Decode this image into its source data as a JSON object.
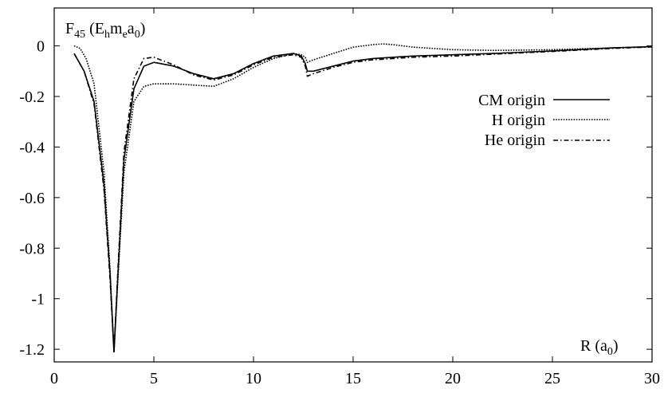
{
  "chart_data": {
    "type": "line",
    "ylabel": {
      "main": "F",
      "sub1": "45",
      "p1": " (E",
      "sub2": "h",
      "p2": "m",
      "sub3": "e",
      "p3": "a",
      "sub4": "0",
      "p4": ")"
    },
    "xlabel": {
      "main": "R (a",
      "sub": "0",
      "close": ")"
    },
    "xlim": [
      0,
      30
    ],
    "ylim": [
      -1.25,
      0.15
    ],
    "xticks": [
      0,
      5,
      10,
      15,
      20,
      25,
      30
    ],
    "xtick_labels": [
      "0",
      "5",
      "10",
      "15",
      "20",
      "25",
      "30"
    ],
    "yticks": [
      0,
      -0.2,
      -0.4,
      -0.6,
      -0.8,
      -1,
      -1.2
    ],
    "ytick_labels": [
      "0",
      "-0.2",
      "-0.4",
      "-0.6",
      "-0.8",
      "-1",
      "-1.2"
    ],
    "legend_position": "upper-right",
    "series": [
      {
        "name": "CM origin",
        "style": "solid",
        "x": [
          1.0,
          1.5,
          2.0,
          2.5,
          2.8,
          3.0,
          3.2,
          3.5,
          4.0,
          4.5,
          5.0,
          6.0,
          7.0,
          8.0,
          9.0,
          10.0,
          11.0,
          12.0,
          12.4,
          12.6,
          12.7,
          13.0,
          14.0,
          15.0,
          16.0,
          18.0,
          20.0,
          22.0,
          25.0,
          28.0,
          30.0
        ],
        "y": [
          -0.03,
          -0.1,
          -0.22,
          -0.55,
          -0.9,
          -1.21,
          -0.9,
          -0.45,
          -0.17,
          -0.08,
          -0.065,
          -0.08,
          -0.11,
          -0.13,
          -0.11,
          -0.07,
          -0.04,
          -0.03,
          -0.04,
          -0.07,
          -0.1,
          -0.1,
          -0.08,
          -0.06,
          -0.05,
          -0.04,
          -0.035,
          -0.03,
          -0.02,
          -0.008,
          -0.003
        ]
      },
      {
        "name": "H origin",
        "style": "dotted",
        "x": [
          1.0,
          1.3,
          1.6,
          2.0,
          2.5,
          2.8,
          3.0,
          3.2,
          3.5,
          4.0,
          4.5,
          5.0,
          6.0,
          7.0,
          8.0,
          9.0,
          10.0,
          11.0,
          12.0,
          12.4,
          12.6,
          12.7,
          13.0,
          14.0,
          15.0,
          16.0,
          16.5,
          17.0,
          18.0,
          20.0,
          22.0,
          25.0,
          28.0,
          30.0
        ],
        "y": [
          0.0,
          -0.01,
          -0.05,
          -0.15,
          -0.5,
          -0.88,
          -1.21,
          -0.92,
          -0.5,
          -0.22,
          -0.16,
          -0.15,
          -0.15,
          -0.155,
          -0.16,
          -0.13,
          -0.085,
          -0.05,
          -0.03,
          -0.035,
          -0.045,
          -0.065,
          -0.055,
          -0.03,
          -0.005,
          0.005,
          0.008,
          0.005,
          -0.005,
          -0.015,
          -0.018,
          -0.015,
          -0.008,
          -0.003
        ]
      },
      {
        "name": "He origin",
        "style": "dashdot",
        "x": [
          1.0,
          1.5,
          2.0,
          2.5,
          2.8,
          3.0,
          3.2,
          3.5,
          4.0,
          4.5,
          5.0,
          6.0,
          7.0,
          8.0,
          9.0,
          10.0,
          11.0,
          12.0,
          12.4,
          12.6,
          12.7,
          13.0,
          14.0,
          15.0,
          16.0,
          18.0,
          20.0,
          22.0,
          25.0,
          28.0,
          30.0
        ],
        "y": [
          -0.03,
          -0.1,
          -0.23,
          -0.57,
          -0.92,
          -1.21,
          -0.88,
          -0.42,
          -0.13,
          -0.05,
          -0.045,
          -0.075,
          -0.115,
          -0.135,
          -0.115,
          -0.075,
          -0.045,
          -0.035,
          -0.045,
          -0.08,
          -0.12,
          -0.11,
          -0.085,
          -0.065,
          -0.055,
          -0.045,
          -0.04,
          -0.033,
          -0.022,
          -0.01,
          -0.004
        ]
      }
    ]
  }
}
